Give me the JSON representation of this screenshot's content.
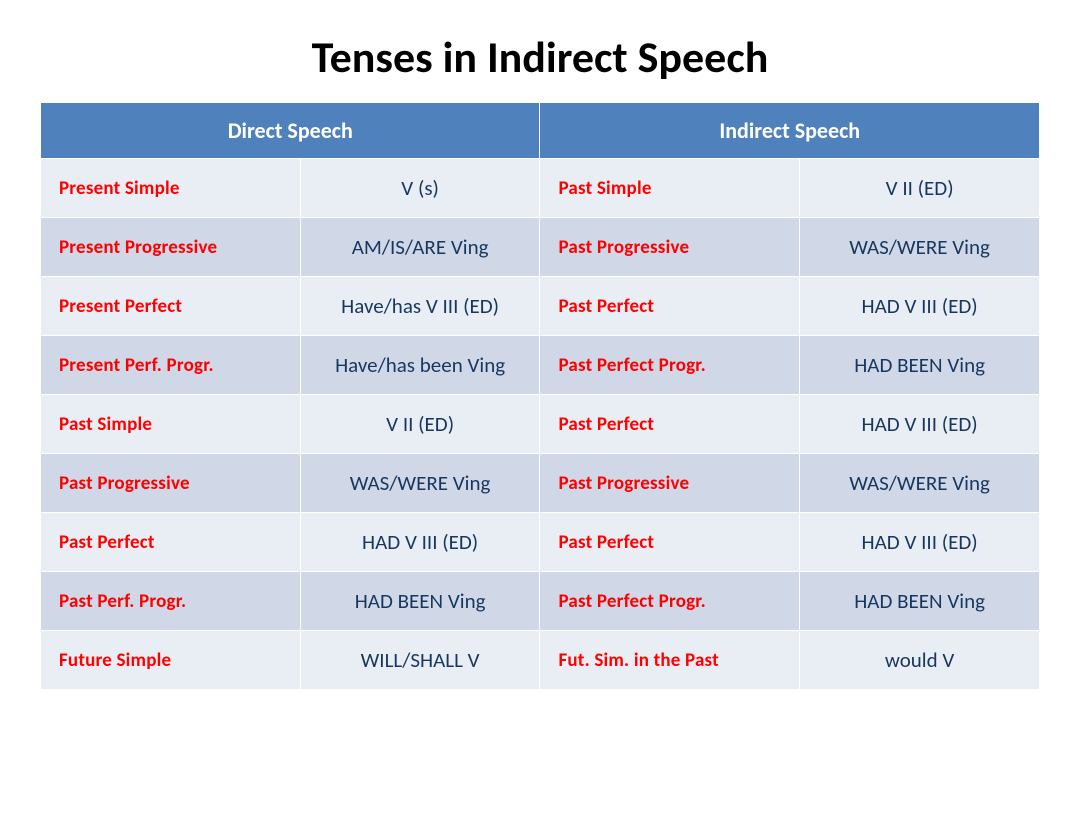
{
  "title": {
    "text": "Tenses in Indirect Speech",
    "fontsize": 44,
    "color": "#000000"
  },
  "table": {
    "header_bg": "#4f81bd",
    "header_color": "#ffffff",
    "header_fontsize": 22,
    "row_bg_odd": "#e9edf4",
    "row_bg_even": "#d0d8e8",
    "tense_color": "#ff0000",
    "form_color": "#17375e",
    "tense_fontsize": 19,
    "form_fontsize": 21,
    "headers": [
      "Direct  Speech",
      "Indirect  Speech"
    ],
    "col_widths": [
      "26%",
      "24%",
      "26%",
      "24%"
    ],
    "rows": [
      {
        "direct_tense": "Present Simple",
        "direct_form": "V (s)",
        "indirect_tense": "Past Simple",
        "indirect_form": "V II (ED)"
      },
      {
        "direct_tense": "Present Progressive",
        "direct_form": "AM/IS/ARE  Ving",
        "indirect_tense": "Past Progressive",
        "indirect_form": "WAS/WERE Ving"
      },
      {
        "direct_tense": "Present Perfect",
        "direct_form": "Have/has  V III (ED)",
        "indirect_tense": "Past Perfect",
        "indirect_form": "HAD  V III (ED)"
      },
      {
        "direct_tense": "Present Perf.  Progr.",
        "direct_form": "Have/has been Ving",
        "indirect_tense": "Past Perfect Progr.",
        "indirect_form": "HAD BEEN   Ving"
      },
      {
        "direct_tense": "Past Simple",
        "direct_form": "V II (ED)",
        "indirect_tense": "Past Perfect",
        "indirect_form": "HAD   V III (ED)"
      },
      {
        "direct_tense": "Past Progressive",
        "direct_form": "WAS/WERE Ving",
        "indirect_tense": "Past Progressive",
        "indirect_form": "WAS/WERE  Ving"
      },
      {
        "direct_tense": "Past Perfect",
        "direct_form": "HAD   V III (ED)",
        "indirect_tense": "Past Perfect",
        "indirect_form": "HAD  V III (ED)"
      },
      {
        "direct_tense": "Past Perf.  Progr.",
        "direct_form": "HAD BEEN   Ving",
        "indirect_tense": "Past Perfect Progr.",
        "indirect_form": "HAD BEEN   Ving"
      },
      {
        "direct_tense": "Future Simple",
        "direct_form": "WILL/SHALL  V",
        "indirect_tense": "Fut. Sim.  in the Past",
        "indirect_form": "would   V"
      }
    ]
  }
}
